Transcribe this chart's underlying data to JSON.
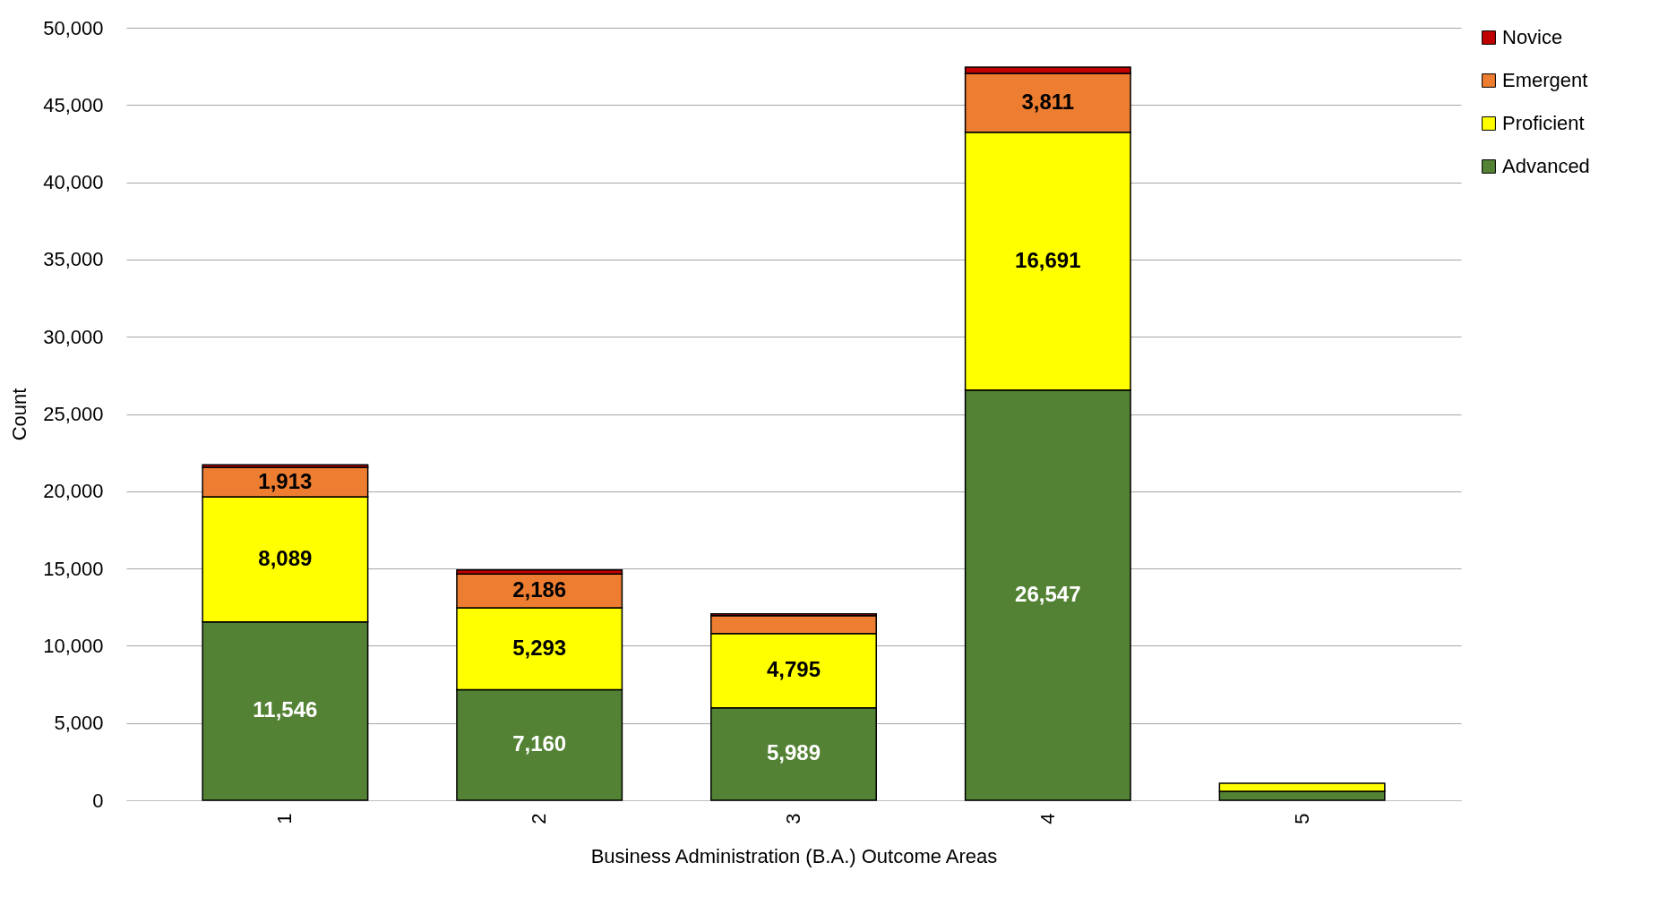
{
  "chart_data": {
    "type": "bar",
    "stacked": true,
    "xlabel": "Business Administration (B.A.) Outcome Areas",
    "ylabel": "Count",
    "categories": [
      "1",
      "2",
      "3",
      "4",
      "5"
    ],
    "series": [
      {
        "name": "Advanced",
        "color": "#548235",
        "values": [
          11546,
          7160,
          5989,
          26547,
          580
        ],
        "value_labels": [
          "11,546",
          "7,160",
          "5,989",
          "26,547",
          null
        ]
      },
      {
        "name": "Proficient",
        "color": "#ffff00",
        "values": [
          8089,
          5293,
          4795,
          16691,
          520
        ],
        "value_labels": [
          "8,089",
          "5,293",
          "4,795",
          "16,691",
          null
        ]
      },
      {
        "name": "Emergent",
        "color": "#ed7d31",
        "values": [
          1913,
          2186,
          1160,
          3811,
          null
        ],
        "value_labels": [
          "1,913",
          "2,186",
          null,
          "3,811",
          null
        ]
      },
      {
        "name": "Novice",
        "color": "#c00000",
        "values": [
          170,
          260,
          120,
          400,
          null
        ]
      }
    ],
    "ylim": [
      0,
      50000
    ],
    "yticks": [
      {
        "value": 0,
        "label": "0"
      },
      {
        "value": 5000,
        "label": "5,000"
      },
      {
        "value": 10000,
        "label": "10,000"
      },
      {
        "value": 15000,
        "label": "15,000"
      },
      {
        "value": 20000,
        "label": "20,000"
      },
      {
        "value": 25000,
        "label": "25,000"
      },
      {
        "value": 30000,
        "label": "30,000"
      },
      {
        "value": 35000,
        "label": "35,000"
      },
      {
        "value": 40000,
        "label": "40,000"
      },
      {
        "value": 45000,
        "label": "45,000"
      },
      {
        "value": 50000,
        "label": "50,000"
      }
    ],
    "grid": "y",
    "legend": "right"
  }
}
